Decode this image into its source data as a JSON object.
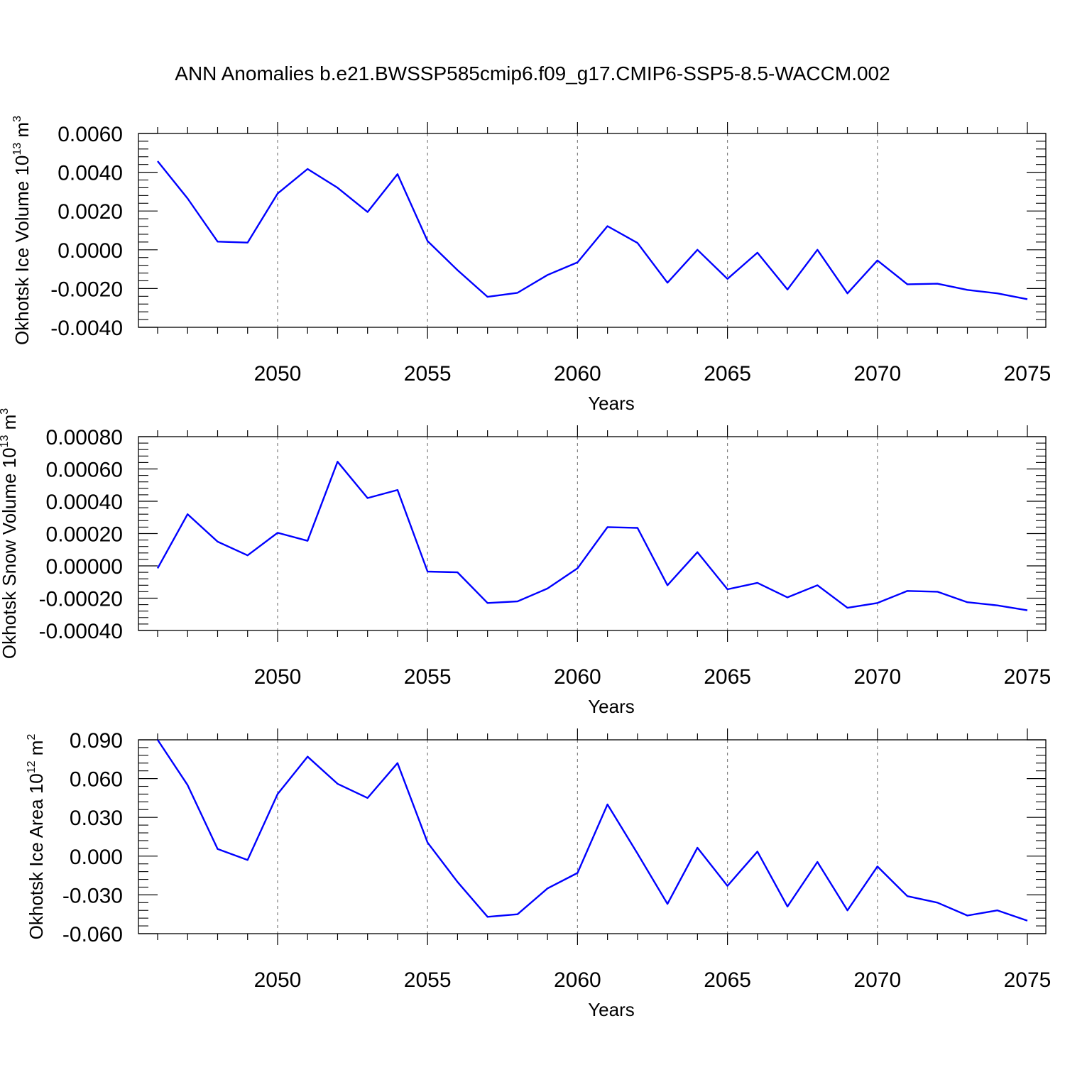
{
  "title": "ANN Anomalies b.e21.BWSSP585cmip6.f09_g17.CMIP6-SSP5-8.5-WACCM.002",
  "colors": {
    "line": "#0000ff",
    "axis": "#000000",
    "grid": "#808080"
  },
  "chart_data": [
    {
      "type": "line",
      "name": "ice-volume",
      "ylabel_main": "Okhotsk Ice Volume 10",
      "ylabel_exp": "13",
      "ylabel_unit": " m",
      "ylabel_unit_exp": "3",
      "xlabel": "Years",
      "xlim": [
        2046,
        2075
      ],
      "ylim": [
        -0.004,
        0.006
      ],
      "yticks": [
        "0.0060",
        "0.0040",
        "0.0020",
        "0.0000",
        "-0.0020",
        "-0.0040"
      ],
      "ytick_values": [
        0.006,
        0.004,
        0.002,
        0.0,
        -0.002,
        -0.004
      ],
      "xticks": [
        "2050",
        "2055",
        "2060",
        "2065",
        "2070",
        "2075"
      ],
      "xtick_values": [
        2050,
        2055,
        2060,
        2065,
        2070,
        2075
      ],
      "x": [
        2046,
        2047,
        2048,
        2049,
        2050,
        2051,
        2052,
        2053,
        2054,
        2055,
        2056,
        2057,
        2058,
        2059,
        2060,
        2061,
        2062,
        2063,
        2064,
        2065,
        2066,
        2067,
        2068,
        2069,
        2070,
        2071,
        2072,
        2073,
        2074,
        2075
      ],
      "values": [
        0.00457,
        0.00265,
        0.00042,
        0.00037,
        0.0029,
        0.00417,
        0.0032,
        0.00195,
        0.0039,
        0.00045,
        -0.00105,
        -0.00243,
        -0.00222,
        -0.0013,
        -0.00065,
        0.00122,
        0.00035,
        -0.0017,
        0.0,
        -0.0015,
        -0.00015,
        -0.00205,
        0.0,
        -0.00225,
        -0.00055,
        -0.00178,
        -0.00175,
        -0.00207,
        -0.00225,
        -0.00255
      ]
    },
    {
      "type": "line",
      "name": "snow-volume",
      "ylabel_main": "Okhotsk Snow Volume 10",
      "ylabel_exp": "13",
      "ylabel_unit": " m",
      "ylabel_unit_exp": "3",
      "xlabel": "Years",
      "xlim": [
        2046,
        2075
      ],
      "ylim": [
        -0.0004,
        0.0008
      ],
      "yticks": [
        "0.00080",
        "0.00060",
        "0.00040",
        "0.00020",
        "0.00000",
        "-0.00020",
        "-0.00040"
      ],
      "ytick_values": [
        0.0008,
        0.0006,
        0.0004,
        0.0002,
        0.0,
        -0.0002,
        -0.0004
      ],
      "xticks": [
        "2050",
        "2055",
        "2060",
        "2065",
        "2070",
        "2075"
      ],
      "xtick_values": [
        2050,
        2055,
        2060,
        2065,
        2070,
        2075
      ],
      "x": [
        2046,
        2047,
        2048,
        2049,
        2050,
        2051,
        2052,
        2053,
        2054,
        2055,
        2056,
        2057,
        2058,
        2059,
        2060,
        2061,
        2062,
        2063,
        2064,
        2065,
        2066,
        2067,
        2068,
        2069,
        2070,
        2071,
        2072,
        2073,
        2074,
        2075
      ],
      "values": [
        -1.5e-05,
        0.00032,
        0.00015,
        6.5e-05,
        0.000205,
        0.000155,
        0.000645,
        0.00042,
        0.00047,
        -3.5e-05,
        -4e-05,
        -0.00023,
        -0.00022,
        -0.00014,
        -1.5e-05,
        0.00024,
        0.000235,
        -0.00012,
        8.5e-05,
        -0.000145,
        -0.000105,
        -0.000195,
        -0.00012,
        -0.00026,
        -0.00023,
        -0.000155,
        -0.00016,
        -0.000225,
        -0.000245,
        -0.000275
      ]
    },
    {
      "type": "line",
      "name": "ice-area",
      "ylabel_main": "Okhotsk Ice Area 10",
      "ylabel_exp": "12",
      "ylabel_unit": " m",
      "ylabel_unit_exp": "2",
      "xlabel": "Years",
      "xlim": [
        2046,
        2075
      ],
      "ylim": [
        -0.06,
        0.09
      ],
      "yticks": [
        "0.090",
        "0.060",
        "0.030",
        "0.000",
        "-0.030",
        "-0.060"
      ],
      "ytick_values": [
        0.09,
        0.06,
        0.03,
        0.0,
        -0.03,
        -0.06
      ],
      "xticks": [
        "2050",
        "2055",
        "2060",
        "2065",
        "2070",
        "2075"
      ],
      "xtick_values": [
        2050,
        2055,
        2060,
        2065,
        2070,
        2075
      ],
      "x": [
        2046,
        2047,
        2048,
        2049,
        2050,
        2051,
        2052,
        2053,
        2054,
        2055,
        2056,
        2057,
        2058,
        2059,
        2060,
        2061,
        2062,
        2063,
        2064,
        2065,
        2066,
        2067,
        2068,
        2069,
        2070,
        2071,
        2072,
        2073,
        2074,
        2075
      ],
      "values": [
        0.09,
        0.055,
        0.0055,
        -0.003,
        0.048,
        0.077,
        0.056,
        0.045,
        0.072,
        0.0105,
        -0.02,
        -0.047,
        -0.045,
        -0.025,
        -0.013,
        0.04,
        0.002,
        -0.037,
        0.0065,
        -0.023,
        0.0035,
        -0.039,
        -0.0045,
        -0.042,
        -0.008,
        -0.031,
        -0.036,
        -0.046,
        -0.042,
        -0.05
      ]
    }
  ]
}
